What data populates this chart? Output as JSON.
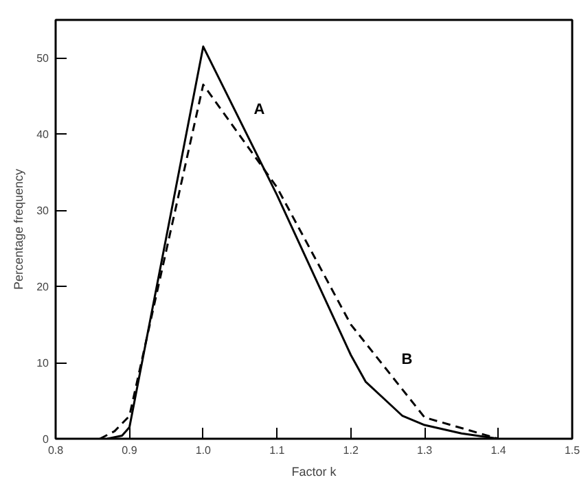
{
  "chart_data": {
    "type": "line",
    "xlabel": "Factor k",
    "ylabel": "Percentage frequency",
    "xlim": [
      0.8,
      1.5
    ],
    "ylim": [
      0,
      55
    ],
    "xticks": [
      {
        "value": 0.8,
        "label": "0.8"
      },
      0.9,
      {
        "value": 1.0,
        "label": "1.0"
      },
      1.1,
      1.2,
      1.3,
      1.4,
      1.5
    ],
    "yticks": [
      0,
      10,
      20,
      30,
      40,
      50
    ],
    "grid": false,
    "marker": "none",
    "series": [
      {
        "name": "A",
        "color": "#000000",
        "line_style": "solid",
        "x": [
          0.87,
          0.89,
          0.9,
          1.0,
          1.1,
          1.2,
          1.22,
          1.25,
          1.27,
          1.3,
          1.35,
          1.4
        ],
        "values": [
          0,
          0.4,
          1.5,
          51.5,
          32,
          11,
          7.5,
          4.8,
          3,
          1.8,
          0.7,
          0
        ]
      },
      {
        "name": "B",
        "color": "#000000",
        "line_style": "dashed",
        "x": [
          0.86,
          0.88,
          0.9,
          1.0,
          1.1,
          1.2,
          1.3,
          1.4
        ],
        "values": [
          0,
          1,
          3,
          46.5,
          33,
          15,
          2.8,
          0
        ]
      }
    ]
  }
}
